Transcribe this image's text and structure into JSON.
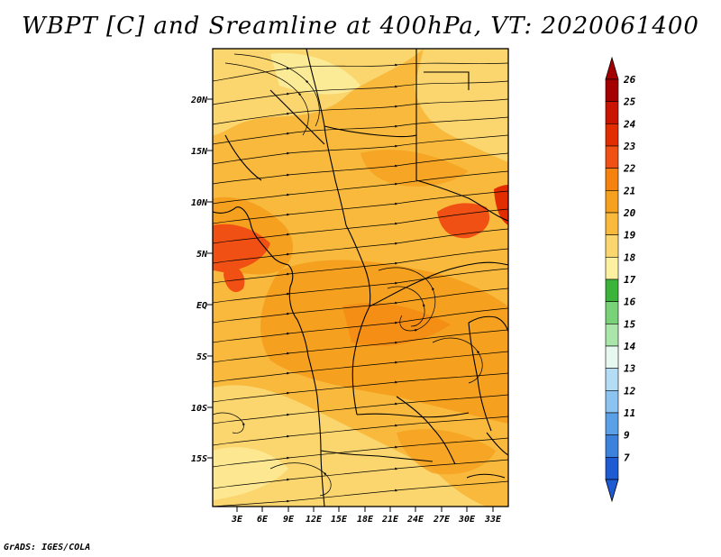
{
  "title": "WBPT [C] and Sreamline at 400hPa, VT: 2020061400",
  "credit": "GrADS: IGES/COLA",
  "axes": {
    "lat_labels": [
      "20N",
      "15N",
      "10N",
      "5N",
      "EQ",
      "5S",
      "10S",
      "15S"
    ],
    "lon_labels": [
      "3E",
      "6E",
      "9E",
      "12E",
      "15E",
      "18E",
      "21E",
      "24E",
      "27E",
      "30E",
      "33E"
    ]
  },
  "colorbar": {
    "labels": [
      "26",
      "25",
      "24",
      "23",
      "22",
      "21",
      "20",
      "19",
      "18",
      "17",
      "16",
      "15",
      "14",
      "13",
      "12",
      "11",
      "9",
      "7"
    ],
    "colors": [
      "#a50000",
      "#c81400",
      "#e12d00",
      "#f05014",
      "#f5820f",
      "#f5a01e",
      "#f8b93c",
      "#fbd66e",
      "#fdf0a0",
      "#3cb43c",
      "#78d278",
      "#aae6aa",
      "#e6f8f0",
      "#b4dcf5",
      "#8cc3f0",
      "#5aa0e6",
      "#3c82dc",
      "#1e5ad2"
    ]
  }
}
